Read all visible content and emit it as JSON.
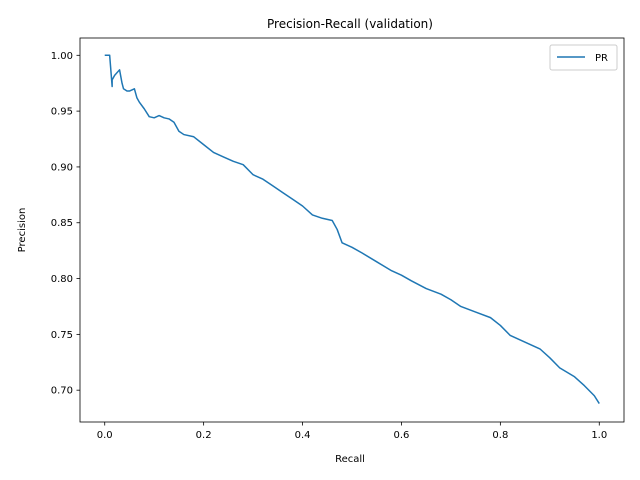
{
  "chart_data": {
    "type": "line",
    "title": "Precision-Recall (validation)",
    "xlabel": "Recall",
    "ylabel": "Precision",
    "xlim": [
      -0.05,
      1.05
    ],
    "ylim": [
      0.6715,
      1.0155
    ],
    "xticks": [
      0.0,
      0.2,
      0.4,
      0.6,
      0.8,
      1.0
    ],
    "xtick_labels": [
      "0.0",
      "0.2",
      "0.4",
      "0.6",
      "0.8",
      "1.0"
    ],
    "yticks": [
      0.7,
      0.75,
      0.8,
      0.85,
      0.9,
      0.95,
      1.0
    ],
    "ytick_labels": [
      "0.70",
      "0.75",
      "0.80",
      "0.85",
      "0.90",
      "0.95",
      "1.00"
    ],
    "grid": false,
    "legend_position": "top-right",
    "series": [
      {
        "name": "PR",
        "color": "#1f77b4",
        "x": [
          0.0,
          0.01,
          0.015,
          0.015,
          0.02,
          0.03,
          0.035,
          0.038,
          0.045,
          0.05,
          0.06,
          0.065,
          0.07,
          0.08,
          0.09,
          0.1,
          0.11,
          0.12,
          0.13,
          0.14,
          0.15,
          0.16,
          0.18,
          0.2,
          0.22,
          0.24,
          0.26,
          0.28,
          0.3,
          0.32,
          0.34,
          0.36,
          0.38,
          0.4,
          0.42,
          0.44,
          0.46,
          0.47,
          0.48,
          0.5,
          0.52,
          0.55,
          0.58,
          0.6,
          0.62,
          0.65,
          0.68,
          0.7,
          0.72,
          0.75,
          0.78,
          0.8,
          0.82,
          0.85,
          0.88,
          0.9,
          0.92,
          0.95,
          0.97,
          0.99,
          1.0
        ],
        "y": [
          1.0,
          1.0,
          0.972,
          0.978,
          0.982,
          0.987,
          0.975,
          0.97,
          0.968,
          0.968,
          0.97,
          0.962,
          0.958,
          0.952,
          0.945,
          0.944,
          0.946,
          0.944,
          0.943,
          0.94,
          0.932,
          0.929,
          0.927,
          0.92,
          0.913,
          0.909,
          0.905,
          0.902,
          0.893,
          0.889,
          0.883,
          0.877,
          0.871,
          0.865,
          0.857,
          0.854,
          0.852,
          0.844,
          0.832,
          0.828,
          0.823,
          0.815,
          0.807,
          0.803,
          0.798,
          0.791,
          0.786,
          0.781,
          0.775,
          0.77,
          0.765,
          0.758,
          0.749,
          0.743,
          0.737,
          0.729,
          0.72,
          0.712,
          0.704,
          0.695,
          0.688
        ]
      }
    ]
  }
}
